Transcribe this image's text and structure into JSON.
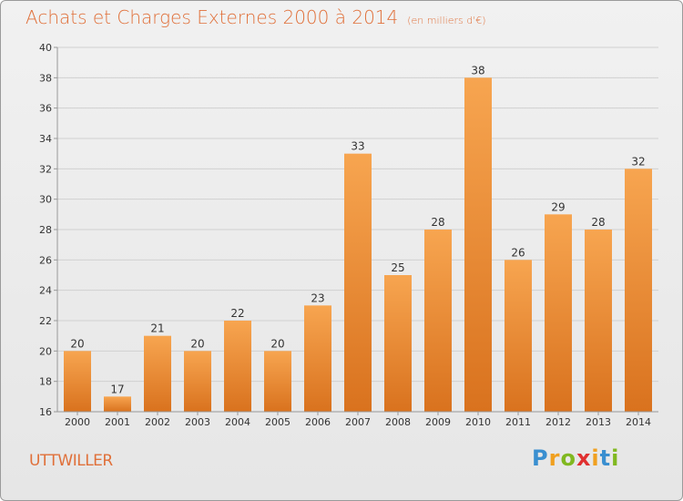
{
  "title": "Achats et Charges Externes 2000 à 2014",
  "unit": "(en milliers d'€)",
  "commune": "UTTWILLER",
  "logo": {
    "text": "Proxiti",
    "letters": [
      {
        "ch": "P",
        "color": "#3a8fd0"
      },
      {
        "ch": "r",
        "color": "#f0a020"
      },
      {
        "ch": "o",
        "color": "#80b820"
      },
      {
        "ch": "x",
        "color": "#e03030"
      },
      {
        "ch": "i",
        "color": "#f0a020"
      },
      {
        "ch": "t",
        "color": "#3a8fd0"
      },
      {
        "ch": "i",
        "color": "#80b820"
      }
    ]
  },
  "colors": {
    "bar_top": "#f7a550",
    "bar_bottom": "#d9721e",
    "accent": "#e0703a",
    "grid": "#d0d0d0",
    "axis": "#999999"
  },
  "chart_data": {
    "type": "bar",
    "categories": [
      "2000",
      "2001",
      "2002",
      "2003",
      "2004",
      "2005",
      "2006",
      "2007",
      "2008",
      "2009",
      "2010",
      "2011",
      "2012",
      "2013",
      "2014"
    ],
    "values": [
      20,
      17,
      21,
      20,
      22,
      20,
      23,
      33,
      25,
      28,
      38,
      26,
      29,
      28,
      32
    ],
    "ylim": [
      16,
      40
    ],
    "yticks": [
      16,
      18,
      20,
      22,
      24,
      26,
      28,
      30,
      32,
      34,
      36,
      38,
      40
    ],
    "grid": true
  }
}
